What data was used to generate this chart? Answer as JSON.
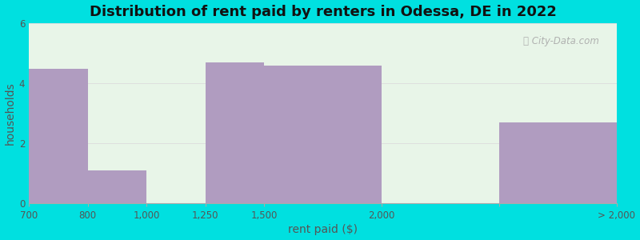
{
  "title": "Distribution of rent paid by renters in Odessa, DE in 2022",
  "xlabel": "rent paid ($)",
  "ylabel": "households",
  "bar_color": "#b09cc0",
  "ylim": [
    0,
    6
  ],
  "yticks": [
    0,
    2,
    4,
    6
  ],
  "background_outer": "#00e0e0",
  "background_inner_top": "#e8f5e8",
  "background_inner_bottom": "#f0faf0",
  "title_fontsize": 13,
  "axis_label_fontsize": 10,
  "tick_fontsize": 8.5,
  "watermark": "City-Data.com",
  "grid_color": "#dddddd",
  "bar_left_edges": [
    0,
    1,
    2,
    3,
    4,
    6,
    8
  ],
  "bar_right_edges": [
    1,
    2,
    3,
    4,
    6,
    8,
    10
  ],
  "bar_heights": [
    4.5,
    1.1,
    0,
    4.7,
    4.6,
    0,
    2.7
  ],
  "tick_positions": [
    0,
    1,
    2,
    3,
    4,
    6,
    8,
    10
  ],
  "tick_labels": [
    "700",
    "800",
    "1,000",
    "1,250",
    "1,500",
    "2,000",
    "",
    "> 2,000"
  ],
  "xlim": [
    0,
    10
  ]
}
